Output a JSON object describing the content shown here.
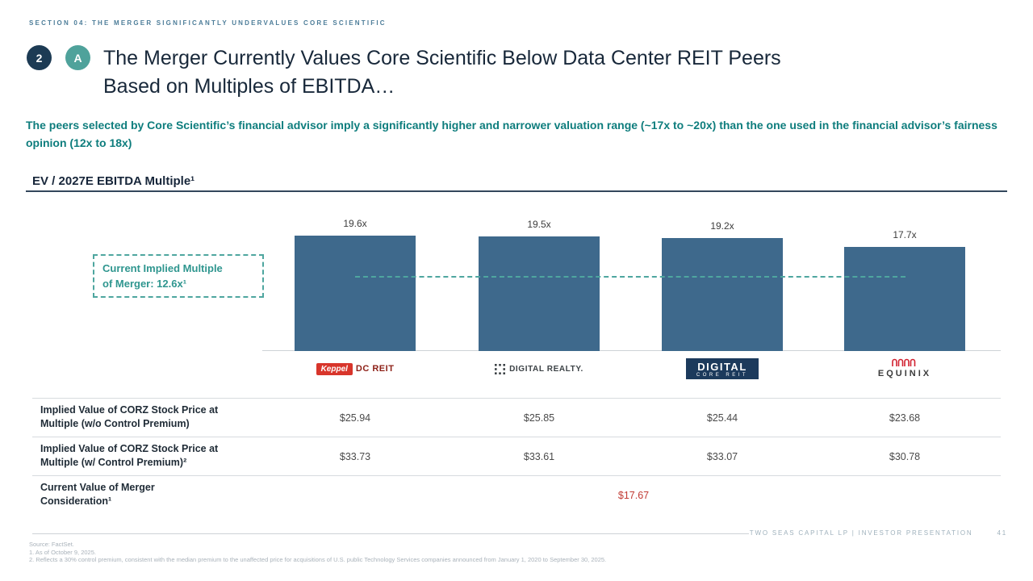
{
  "header": {
    "section_label": "SECTION 04: THE MERGER SIGNIFICANTLY UNDERVALUES CORE SCIENTIFIC",
    "badge_number": "2",
    "badge_letter": "A",
    "title_line1": "The Merger Currently Values Core Scientific Below Data Center REIT Peers",
    "title_line2": "Based on Multiples of EBITDA…",
    "subtitle": "The peers selected by Core Scientific’s financial advisor imply a significantly higher and narrower valuation range (~17x to ~20x) than the one used in the financial advisor’s fairness opinion (12x to 18x)"
  },
  "chart_data": {
    "type": "bar",
    "title": "EV / 2027E EBITDA Multiple¹",
    "categories": [
      "Keppel DC REIT",
      "Digital Realty",
      "Digital Core REIT",
      "Equinix"
    ],
    "values": [
      19.6,
      19.5,
      19.2,
      17.7
    ],
    "value_labels": [
      "19.6x",
      "19.5x",
      "19.2x",
      "17.7x"
    ],
    "reference_line": {
      "value": 12.6,
      "label": "Current Implied Multiple of Merger: 12.6x¹",
      "label_lines": [
        "Current Implied Multiple",
        "of Merger: 12.6x¹"
      ]
    },
    "ylim": [
      0,
      21
    ],
    "grid": false,
    "legend_position": "none",
    "bar_color": "#3e698c",
    "reference_color": "#4ea69f"
  },
  "logos": {
    "keppel_badge": "Keppel",
    "keppel_text": "DC REIT",
    "digital_realty_text": "DIGITAL REALTY.",
    "digital_core_line1": "DIGITAL",
    "digital_core_line2": "CORE REIT",
    "equinix_text": "EQUINIX"
  },
  "table": {
    "row1_label_lines": [
      "Implied Value of CORZ Stock Price at",
      "Multiple (w/o Control Premium)"
    ],
    "row1_values": [
      "$25.94",
      "$25.85",
      "$25.44",
      "$23.68"
    ],
    "row2_label_lines": [
      "Implied Value of CORZ Stock Price at",
      "Multiple (w/ Control Premium)²"
    ],
    "row2_values": [
      "$33.73",
      "$33.61",
      "$33.07",
      "$30.78"
    ],
    "row3_label_lines": [
      "Current Value of Merger",
      "Consideration¹"
    ],
    "row3_value": "$17.67"
  },
  "footer": {
    "attribution": "TWO SEAS CAPITAL LP   |   INVESTOR PRESENTATION",
    "page_number": "41",
    "notes": [
      "Source: FactSet.",
      "1.      As of October 9, 2025.",
      "2.      Reflects a 30% control premium, consistent with the median premium to the unaffected price for acquisitions of U.S. public Technology Services companies announced from January 1, 2020 to September 30, 2025."
    ]
  }
}
